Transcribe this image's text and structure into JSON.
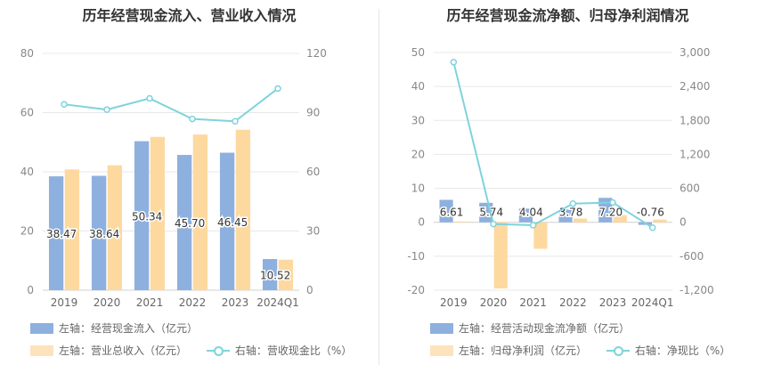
{
  "chart_data": [
    {
      "type": "bar",
      "title": "历年经营现金流入、营业收入情况",
      "categories": [
        "2019",
        "2020",
        "2021",
        "2022",
        "2023",
        "2024Q1"
      ],
      "left_axis": {
        "ylim": [
          0,
          80
        ],
        "ticks": [
          "0",
          "20",
          "40",
          "60",
          "80"
        ]
      },
      "right_axis": {
        "ylim": [
          0,
          120
        ],
        "ticks": [
          "0",
          "30",
          "60",
          "90",
          "120"
        ]
      },
      "series": [
        {
          "name": "左轴：经营现金流入（亿元）",
          "kind": "bar",
          "axis": "left",
          "color": "#8eb0de",
          "values": [
            38.47,
            38.64,
            50.34,
            45.7,
            46.45,
            10.52
          ],
          "labels": [
            "38.47",
            "38.64",
            "50.34",
            "45.70",
            "46.45",
            "10.52"
          ]
        },
        {
          "name": "左轴：营业总收入（亿元）",
          "kind": "bar",
          "axis": "left",
          "color": "#fdd9a0",
          "values": [
            40.8,
            42.2,
            51.8,
            52.6,
            54.2,
            10.3
          ]
        },
        {
          "name": "右轴：营收现金比（%）",
          "kind": "line",
          "axis": "right",
          "color": "#7fd3dc",
          "values": [
            94.2,
            91.5,
            97.2,
            86.8,
            85.6,
            102.2
          ]
        }
      ],
      "grid": true,
      "legend_position": "bottom"
    },
    {
      "type": "bar",
      "title": "历年经营现金流净额、归母净利润情况",
      "categories": [
        "2019",
        "2020",
        "2021",
        "2022",
        "2023",
        "2024Q1"
      ],
      "left_axis": {
        "ylim": [
          -20,
          50
        ],
        "ticks": [
          "-20",
          "-10",
          "0",
          "10",
          "20",
          "30",
          "40",
          "50"
        ]
      },
      "right_axis": {
        "ylim": [
          -1200,
          3000
        ],
        "ticks": [
          "-1,200",
          "-600",
          "0",
          "600",
          "1,200",
          "1,800",
          "2,400",
          "3,000"
        ]
      },
      "series": [
        {
          "name": "左轴：经营活动现金流净额（亿元）",
          "kind": "bar",
          "axis": "left",
          "color": "#8eb0de",
          "values": [
            6.61,
            5.74,
            4.04,
            3.78,
            7.2,
            -0.76
          ],
          "labels": [
            "6.61",
            "5.74",
            "4.04",
            "3.78",
            "7.20",
            "-0.76"
          ]
        },
        {
          "name": "左轴：归母净利润（亿元）",
          "kind": "bar",
          "axis": "left",
          "color": "#fdd9a0",
          "values": [
            0.2,
            -19.5,
            -7.8,
            1.1,
            2.1,
            0.8
          ]
        },
        {
          "name": "右轴：净现比（%）",
          "kind": "line",
          "axis": "right",
          "color": "#7fd3dc",
          "values": [
            2830,
            -30,
            -52,
            330,
            350,
            -95
          ]
        }
      ],
      "grid": true,
      "legend_position": "bottom"
    }
  ]
}
